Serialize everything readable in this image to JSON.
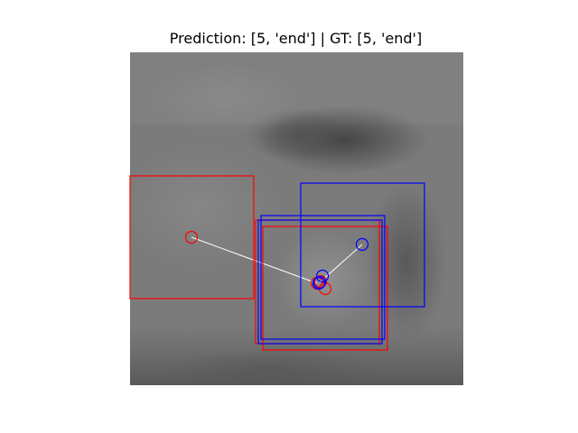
{
  "figure": {
    "title": "Prediction: [5, 'end'] | GT: [5, 'end']"
  },
  "colors": {
    "prediction": "#ff0000",
    "ground_truth": "#0000ff",
    "trajectory": "#ffffff",
    "background": "#ffffff"
  },
  "overlay": {
    "prediction_markers": 4,
    "ground_truth_markers": 4,
    "prediction_boxes": 3,
    "ground_truth_boxes": 3
  }
}
